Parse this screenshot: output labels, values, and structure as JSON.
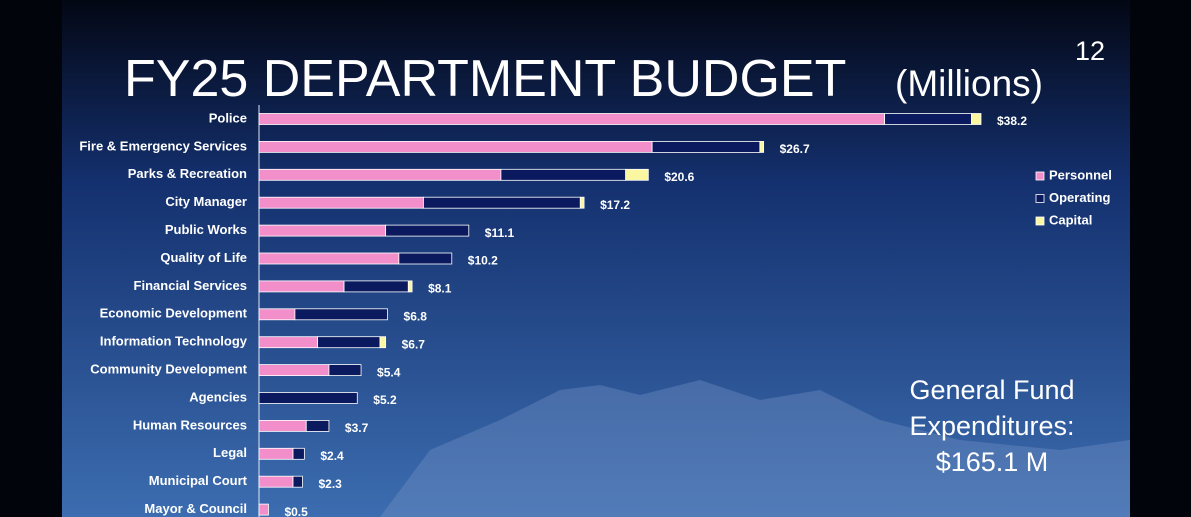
{
  "chart_data": {
    "type": "stacked-bar-horizontal",
    "title": "FY25 DEPARTMENT BUDGET",
    "subtitle": "(Millions)",
    "page_number": "12",
    "annotation": [
      "General Fund",
      "Expenditures:",
      "$165.1 M"
    ],
    "categories": [
      "Police",
      "Fire & Emergency Services",
      "Parks & Recreation",
      "City Manager",
      "Public Works",
      "Quality of Life",
      "Financial Services",
      "Economic Development",
      "Information Technology",
      "Community Development",
      "Agencies",
      "Human Resources",
      "Legal",
      "Municipal Court",
      "Mayor & Council"
    ],
    "series": [
      {
        "name": "Personnel",
        "color": "#f28fcb",
        "values": [
          33.1,
          20.8,
          12.8,
          8.7,
          6.7,
          7.4,
          4.5,
          1.9,
          3.1,
          3.7,
          0,
          2.5,
          1.8,
          1.8,
          0.5
        ]
      },
      {
        "name": "Operating",
        "color": "#0b1a5e",
        "values": [
          4.6,
          5.7,
          6.6,
          8.3,
          4.4,
          2.8,
          3.4,
          4.9,
          3.3,
          1.7,
          5.2,
          1.2,
          0.6,
          0.5,
          0
        ]
      },
      {
        "name": "Capital",
        "color": "#fbf6a0",
        "values": [
          0.5,
          0.2,
          1.2,
          0.2,
          0,
          0,
          0.2,
          0,
          0.3,
          0,
          0,
          0,
          0,
          0,
          0
        ]
      }
    ],
    "total_labels": [
      "$38.2",
      "$26.7",
      "$20.6",
      "$17.2",
      "$11.1",
      "$10.2",
      "$8.1",
      "$6.8",
      "$6.7",
      "$5.4",
      "$5.2",
      "$3.7",
      "$2.4",
      "$2.3",
      "$0.5"
    ],
    "xlim": [
      0,
      45
    ],
    "legend": "right"
  }
}
